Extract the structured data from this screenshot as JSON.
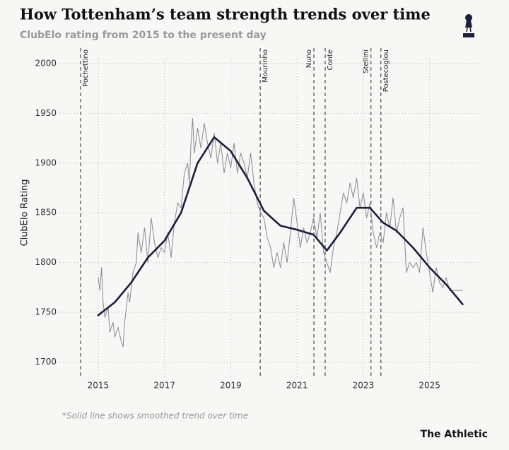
{
  "chart_data": {
    "type": "line",
    "title": "How Tottenham’s team strength trends over time",
    "subtitle": "ClubElo rating from 2015 to the present day",
    "y_label": "ClubElo Rating",
    "footnote": "*Solid line shows smoothed trend over time",
    "brand": "The Athletic",
    "xlim": [
      2013.85,
      2026.65
    ],
    "xticks": [
      2015,
      2017,
      2019,
      2021,
      2023,
      2025
    ],
    "ylim": [
      1684,
      2000
    ],
    "yticks": [
      1700,
      1750,
      1800,
      1850,
      1900,
      1950,
      2000
    ],
    "grid": true,
    "managers": [
      {
        "label": "Pochettino",
        "x": 2014.47
      },
      {
        "label": "Mourinho",
        "x": 2019.89
      },
      {
        "label": "Nuno",
        "x": 2021.51
      },
      {
        "label": "Conte",
        "x": 2021.85
      },
      {
        "label": "Stellini",
        "x": 2023.23
      },
      {
        "label": "Postecoglou",
        "x": 2023.53
      }
    ],
    "series": [
      {
        "color": "#8a8a96",
        "width": 1,
        "x": [
          2015.0,
          2015.05,
          2015.1,
          2015.15,
          2015.2,
          2015.3,
          2015.35,
          2015.45,
          2015.5,
          2015.6,
          2015.7,
          2015.75,
          2015.8,
          2015.9,
          2015.95,
          2016.05,
          2016.15,
          2016.2,
          2016.3,
          2016.4,
          2016.5,
          2016.6,
          2016.7,
          2016.8,
          2016.9,
          2017.0,
          2017.1,
          2017.2,
          2017.3,
          2017.4,
          2017.5,
          2017.6,
          2017.7,
          2017.75,
          2017.8,
          2017.85,
          2017.9,
          2018.0,
          2018.1,
          2018.2,
          2018.3,
          2018.4,
          2018.5,
          2018.6,
          2018.7,
          2018.8,
          2018.9,
          2019.0,
          2019.1,
          2019.2,
          2019.3,
          2019.4,
          2019.5,
          2019.6,
          2019.7,
          2019.8,
          2019.9,
          2020.0,
          2020.1,
          2020.2,
          2020.3,
          2020.4,
          2020.5,
          2020.6,
          2020.7,
          2020.8,
          2020.9,
          2021.0,
          2021.1,
          2021.2,
          2021.3,
          2021.4,
          2021.5,
          2021.6,
          2021.7,
          2021.8,
          2021.9,
          2022.0,
          2022.1,
          2022.2,
          2022.3,
          2022.4,
          2022.5,
          2022.6,
          2022.7,
          2022.8,
          2022.9,
          2023.0,
          2023.1,
          2023.2,
          2023.3,
          2023.4,
          2023.5,
          2023.6,
          2023.7,
          2023.8,
          2023.9,
          2024.0,
          2024.1,
          2024.2,
          2024.3,
          2024.4,
          2024.5,
          2024.6,
          2024.7,
          2024.8,
          2024.9,
          2025.0,
          2025.1,
          2025.2,
          2025.3,
          2025.4,
          2025.5,
          2025.6,
          2026.0
        ],
        "values": [
          1785,
          1772,
          1795,
          1760,
          1745,
          1755,
          1730,
          1740,
          1725,
          1735,
          1720,
          1715,
          1740,
          1770,
          1760,
          1790,
          1800,
          1830,
          1810,
          1835,
          1800,
          1845,
          1820,
          1805,
          1815,
          1810,
          1830,
          1805,
          1840,
          1860,
          1855,
          1890,
          1900,
          1880,
          1920,
          1945,
          1910,
          1935,
          1915,
          1940,
          1920,
          1905,
          1930,
          1900,
          1920,
          1890,
          1910,
          1895,
          1920,
          1890,
          1910,
          1900,
          1885,
          1910,
          1880,
          1860,
          1850,
          1845,
          1825,
          1815,
          1795,
          1810,
          1795,
          1820,
          1800,
          1830,
          1865,
          1840,
          1815,
          1835,
          1820,
          1830,
          1845,
          1825,
          1850,
          1810,
          1800,
          1790,
          1815,
          1830,
          1850,
          1870,
          1860,
          1880,
          1865,
          1885,
          1855,
          1870,
          1845,
          1860,
          1830,
          1815,
          1830,
          1820,
          1850,
          1835,
          1865,
          1830,
          1845,
          1855,
          1790,
          1800,
          1795,
          1800,
          1790,
          1835,
          1810,
          1790,
          1770,
          1795,
          1780,
          1775,
          1785,
          1772,
          1772
        ]
      },
      {
        "color": "#1b1f3b",
        "width": 2.6,
        "x": [
          2015.0,
          2015.5,
          2016.0,
          2016.5,
          2017.0,
          2017.5,
          2018.0,
          2018.5,
          2019.0,
          2019.5,
          2020.0,
          2020.5,
          2021.0,
          2021.5,
          2021.9,
          2022.3,
          2022.8,
          2023.2,
          2023.6,
          2024.0,
          2024.5,
          2025.0,
          2025.5,
          2026.0
        ],
        "values": [
          1747,
          1760,
          1780,
          1805,
          1822,
          1850,
          1900,
          1926,
          1912,
          1885,
          1852,
          1837,
          1833,
          1828,
          1812,
          1830,
          1855,
          1855,
          1840,
          1832,
          1815,
          1795,
          1778,
          1758
        ]
      }
    ]
  }
}
